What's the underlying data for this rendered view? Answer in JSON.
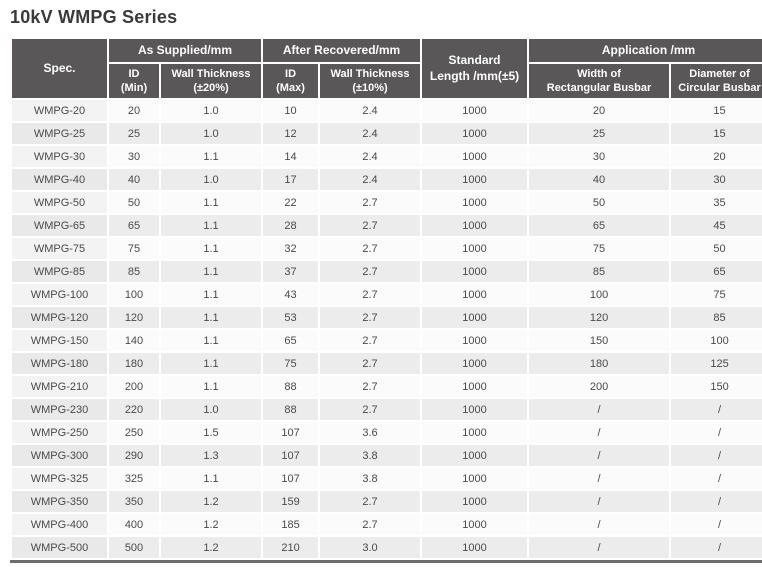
{
  "title": "10kV WMPG Series",
  "colors": {
    "header_bg": "#595757",
    "header_text": "#ffffff",
    "row_alt_bg": "#ececec",
    "row_bg": "#fbfbfb",
    "bottom_border": "#6f6e6e",
    "body_text": "#4a4a4a"
  },
  "table": {
    "header": {
      "spec": "Spec.",
      "as_supplied": "As Supplied/mm",
      "id_min": "ID\n(Min)",
      "wall_thickness_20": "Wall Thickness\n(±20%)",
      "after_recovered": "After Recovered/mm",
      "id_max": "ID\n(Max)",
      "wall_thickness_10": "Wall Thickness\n(±10%)",
      "standard_length": "Standard\nLength /mm(±5)",
      "application": "Application /mm",
      "width_rect_busbar": "Width of\nRectangular Busbar",
      "diameter_circ_busbar": "Diameter of\nCircular Busbar"
    },
    "rows": [
      [
        "WMPG-20",
        "20",
        "1.0",
        "10",
        "2.4",
        "1000",
        "20",
        "15"
      ],
      [
        "WMPG-25",
        "25",
        "1.0",
        "12",
        "2.4",
        "1000",
        "25",
        "15"
      ],
      [
        "WMPG-30",
        "30",
        "1.1",
        "14",
        "2.4",
        "1000",
        "30",
        "20"
      ],
      [
        "WMPG-40",
        "40",
        "1.0",
        "17",
        "2.4",
        "1000",
        "40",
        "30"
      ],
      [
        "WMPG-50",
        "50",
        "1.1",
        "22",
        "2.7",
        "1000",
        "50",
        "35"
      ],
      [
        "WMPG-65",
        "65",
        "1.1",
        "28",
        "2.7",
        "1000",
        "65",
        "45"
      ],
      [
        "WMPG-75",
        "75",
        "1.1",
        "32",
        "2.7",
        "1000",
        "75",
        "50"
      ],
      [
        "WMPG-85",
        "85",
        "1.1",
        "37",
        "2.7",
        "1000",
        "85",
        "65"
      ],
      [
        "WMPG-100",
        "100",
        "1.1",
        "43",
        "2.7",
        "1000",
        "100",
        "75"
      ],
      [
        "WMPG-120",
        "120",
        "1.1",
        "53",
        "2.7",
        "1000",
        "120",
        "85"
      ],
      [
        "WMPG-150",
        "140",
        "1.1",
        "65",
        "2.7",
        "1000",
        "150",
        "100"
      ],
      [
        "WMPG-180",
        "180",
        "1.1",
        "75",
        "2.7",
        "1000",
        "180",
        "125"
      ],
      [
        "WMPG-210",
        "200",
        "1.1",
        "88",
        "2.7",
        "1000",
        "200",
        "150"
      ],
      [
        "WMPG-230",
        "220",
        "1.0",
        "88",
        "2.7",
        "1000",
        "/",
        "/"
      ],
      [
        "WMPG-250",
        "250",
        "1.5",
        "107",
        "3.6",
        "1000",
        "/",
        "/"
      ],
      [
        "WMPG-300",
        "290",
        "1.3",
        "107",
        "3.8",
        "1000",
        "/",
        "/"
      ],
      [
        "WMPG-325",
        "325",
        "1.1",
        "107",
        "3.8",
        "1000",
        "/",
        "/"
      ],
      [
        "WMPG-350",
        "350",
        "1.2",
        "159",
        "2.7",
        "1000",
        "/",
        "/"
      ],
      [
        "WMPG-400",
        "400",
        "1.2",
        "185",
        "2.7",
        "1000",
        "/",
        "/"
      ],
      [
        "WMPG-500",
        "500",
        "1.2",
        "210",
        "3.0",
        "1000",
        "/",
        "/"
      ]
    ]
  }
}
